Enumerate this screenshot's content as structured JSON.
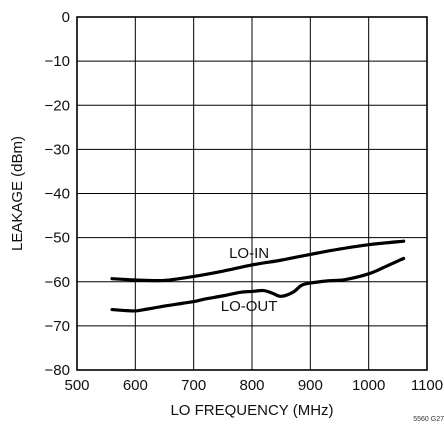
{
  "chart_data": {
    "type": "line",
    "xlabel": "LO FREQUENCY (MHz)",
    "ylabel": "LEAKAGE (dBm)",
    "xlim": [
      500,
      1100
    ],
    "ylim": [
      -80,
      0
    ],
    "xticks": [
      500,
      600,
      700,
      800,
      900,
      1000,
      1100
    ],
    "yticks": [
      0,
      -10,
      -20,
      -30,
      -40,
      -50,
      -60,
      -70,
      -80
    ],
    "xtick_labels": [
      "500",
      "600",
      "700",
      "800",
      "900",
      "1000",
      "1100"
    ],
    "ytick_labels": [
      "0",
      "−10",
      "−20",
      "−30",
      "−40",
      "−50",
      "−60",
      "−70",
      "−80"
    ],
    "grid": true,
    "series": [
      {
        "name": "LO-IN",
        "x": [
          560,
          600,
          650,
          700,
          750,
          800,
          850,
          900,
          950,
          1000,
          1060
        ],
        "y": [
          -59.3,
          -59.6,
          -59.7,
          -58.8,
          -57.6,
          -56.2,
          -55.1,
          -53.8,
          -52.6,
          -51.6,
          -50.8
        ]
      },
      {
        "name": "LO-OUT",
        "x": [
          560,
          580,
          600,
          620,
          650,
          680,
          700,
          720,
          750,
          780,
          800,
          820,
          835,
          850,
          870,
          885,
          900,
          930,
          960,
          1000,
          1030,
          1060
        ],
        "y": [
          -66.3,
          -66.5,
          -66.6,
          -66.2,
          -65.5,
          -64.9,
          -64.5,
          -63.9,
          -63.2,
          -62.4,
          -62.2,
          -62.0,
          -62.6,
          -63.3,
          -62.4,
          -60.8,
          -60.3,
          -59.8,
          -59.5,
          -58.2,
          -56.5,
          -54.7
        ]
      }
    ],
    "series_labels": [
      {
        "text": "LO-IN",
        "x": 795,
        "y": -53.5
      },
      {
        "text": "LO-OUT",
        "x": 795,
        "y": -65.5
      }
    ],
    "figure_id": "5560 G27"
  }
}
